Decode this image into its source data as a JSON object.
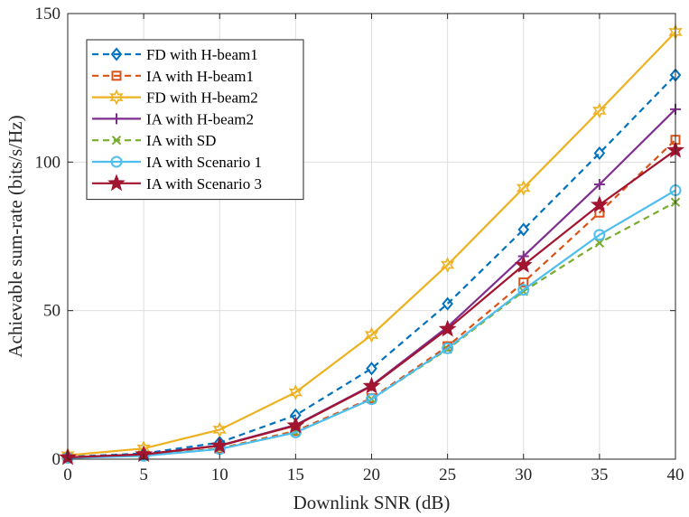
{
  "chart_data": {
    "type": "line",
    "xlabel": "Downlink SNR (dB)",
    "ylabel": "Achievable sum-rate (bits/s/Hz)",
    "xlim": [
      0,
      40
    ],
    "ylim": [
      0,
      150
    ],
    "x_ticks": [
      "0",
      "5",
      "10",
      "15",
      "20",
      "25",
      "30",
      "35",
      "40"
    ],
    "y_ticks": [
      "0",
      "50",
      "100",
      "150"
    ],
    "grid": "on",
    "legend_position": "top-left",
    "x": [
      0,
      5,
      10,
      15,
      20,
      25,
      30,
      35,
      40
    ],
    "series": [
      {
        "name": "FD with H-beam1",
        "values": [
          0.8,
          1.9,
          5.6,
          14.8,
          30.5,
          52.3,
          77.3,
          103.0,
          129.3
        ],
        "color": "#0072BD",
        "dash": "dashed",
        "marker": "diamond"
      },
      {
        "name": "IA with H-beam1",
        "values": [
          0.5,
          1.2,
          3.6,
          9.5,
          20.5,
          38.0,
          59.5,
          83.0,
          107.5
        ],
        "color": "#D95319",
        "dash": "dashed",
        "marker": "square"
      },
      {
        "name": "FD with H-beam2",
        "values": [
          1.3,
          3.6,
          9.9,
          22.5,
          41.8,
          65.4,
          91.3,
          117.3,
          143.8
        ],
        "color": "#EDB120",
        "dash": "solid",
        "marker": "hexagram"
      },
      {
        "name": "IA with H-beam2",
        "values": [
          0.6,
          1.6,
          4.6,
          11.5,
          24.8,
          44.5,
          68.3,
          92.5,
          117.8
        ],
        "color": "#7E2F8E",
        "dash": "solid",
        "marker": "plus"
      },
      {
        "name": "IA with SD",
        "values": [
          0.5,
          1.2,
          3.5,
          9.0,
          20.2,
          37.0,
          56.5,
          72.8,
          86.5
        ],
        "color": "#77AC30",
        "dash": "dashed",
        "marker": "x"
      },
      {
        "name": "IA with Scenario 1",
        "values": [
          0.4,
          1.1,
          3.4,
          9.0,
          20.2,
          37.3,
          57.0,
          75.5,
          90.5
        ],
        "color": "#4DBEEE",
        "dash": "solid",
        "marker": "circle"
      },
      {
        "name": "IA with Scenario 3",
        "values": [
          0.6,
          1.6,
          4.5,
          11.3,
          24.6,
          43.8,
          65.3,
          85.6,
          104.0
        ],
        "color": "#A2142F",
        "dash": "solid",
        "marker": "pentagram"
      }
    ]
  }
}
